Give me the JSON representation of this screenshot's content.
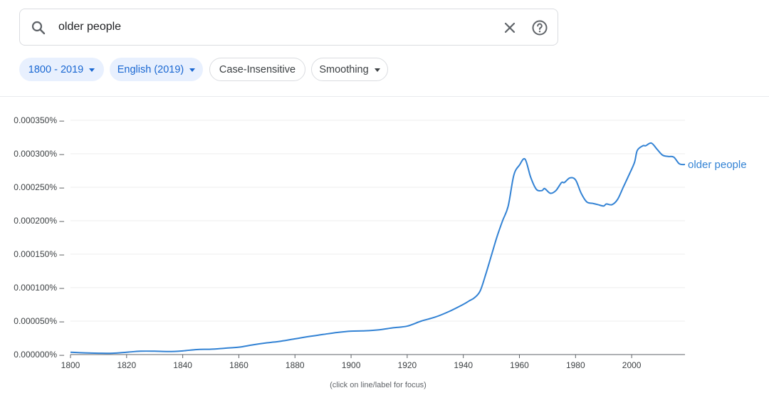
{
  "search": {
    "value": "older people",
    "search_icon": "search-icon",
    "clear_icon": "close-icon",
    "help_icon": "help-icon"
  },
  "filters": {
    "years": "1800 - 2019",
    "corpus": "English (2019)",
    "case": "Case-Insensitive",
    "smoothing": "Smoothing"
  },
  "colors": {
    "accent": "#1967d2",
    "line": "#3282d4",
    "chip_active_bg": "#e8f0fe"
  },
  "footer_note": "(click on line/label for focus)",
  "chart_data": {
    "type": "line",
    "title": "",
    "xlabel": "",
    "ylabel": "",
    "xlim": [
      1800,
      2019
    ],
    "ylim": [
      0,
      0.00035
    ],
    "grid": true,
    "x_ticks": [
      "1800",
      "1820",
      "1840",
      "1860",
      "1880",
      "1900",
      "1920",
      "1940",
      "1960",
      "1980",
      "2000"
    ],
    "y_ticks": [
      "0.000000%",
      "0.000050%",
      "0.000100%",
      "0.000150%",
      "0.000200%",
      "0.000250%",
      "0.000300%",
      "0.000350%"
    ],
    "series": [
      {
        "name": "older people",
        "x": [
          1800,
          1805,
          1810,
          1815,
          1820,
          1825,
          1830,
          1835,
          1840,
          1845,
          1850,
          1855,
          1860,
          1865,
          1870,
          1875,
          1880,
          1885,
          1890,
          1895,
          1900,
          1905,
          1910,
          1915,
          1920,
          1925,
          1930,
          1935,
          1940,
          1942,
          1944,
          1946,
          1948,
          1950,
          1952,
          1954,
          1956,
          1958,
          1960,
          1962,
          1964,
          1966,
          1968,
          1969,
          1971,
          1973,
          1975,
          1976,
          1978,
          1980,
          1982,
          1984,
          1986,
          1988,
          1990,
          1991,
          1993,
          1995,
          1997,
          1999,
          2001,
          2002,
          2004,
          2005,
          2007,
          2009,
          2011,
          2013,
          2015,
          2017,
          2019
        ],
        "y": [
          3.5e-06,
          2.5e-06,
          2e-06,
          2e-06,
          3.5e-06,
          5e-06,
          5e-06,
          4.5e-06,
          5.5e-06,
          7.5e-06,
          8e-06,
          9.5e-06,
          1.1e-05,
          1.45e-05,
          1.75e-05,
          2e-05,
          2.35e-05,
          2.7e-05,
          3e-05,
          3.3e-05,
          3.5e-05,
          3.55e-05,
          3.7e-05,
          4e-05,
          4.25e-05,
          5e-05,
          5.6e-05,
          6.45e-05,
          7.5e-05,
          8e-05,
          8.5e-05,
          9.5e-05,
          0.00012,
          0.000148,
          0.000176,
          0.0002,
          0.000222,
          0.000268,
          0.000283,
          0.000292,
          0.000265,
          0.000247,
          0.000245,
          0.000248,
          0.000241,
          0.000245,
          0.000257,
          0.000257,
          0.000264,
          0.000261,
          0.000241,
          0.000228,
          0.000226,
          0.000224,
          0.000222,
          0.000225,
          0.000224,
          0.000232,
          0.00025,
          0.000268,
          0.000287,
          0.000305,
          0.000312,
          0.000312,
          0.000316,
          0.000307,
          0.000298,
          0.000296,
          0.000295,
          0.000285,
          0.000284
        ]
      }
    ]
  }
}
